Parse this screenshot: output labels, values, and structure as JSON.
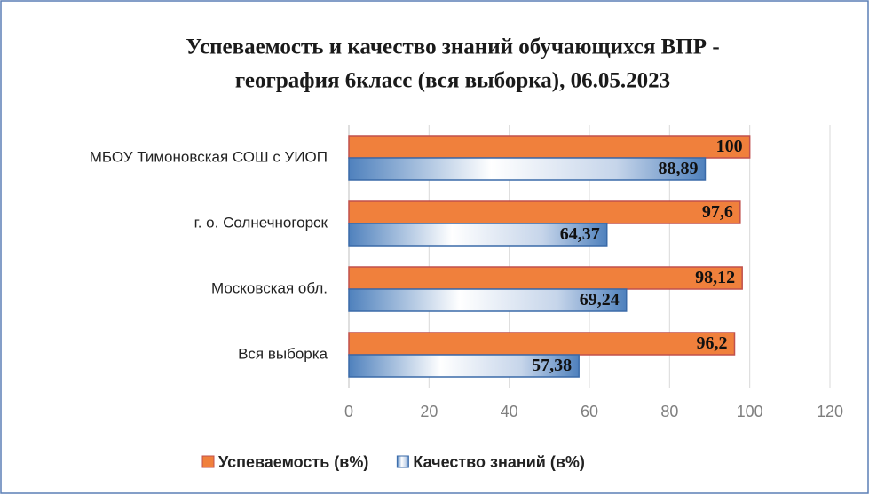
{
  "chart_data": {
    "type": "hbar",
    "title": [
      "Успеваемость и качество знаний  обучающихся ВПР -",
      "география  6класс (вся выборка), 06.05.2023"
    ],
    "categories": [
      "МБОУ Тимоновская  СОШ с УИОП",
      "г. о. Солнечногорск",
      "Московская обл.",
      "Вся выборка"
    ],
    "series": [
      {
        "name": "Успеваемость (в%)",
        "color": "#f0803c",
        "values": [
          100,
          97.6,
          98.12,
          96.2
        ],
        "value_labels": [
          "100",
          "97,6",
          "98,12",
          "96,2"
        ]
      },
      {
        "name": "Качество знаний (в%)",
        "color": "#4f81bd",
        "values": [
          88.89,
          64.37,
          69.24,
          57.38
        ],
        "value_labels": [
          "88,89",
          "64,37",
          "69,24",
          "57,38"
        ]
      }
    ],
    "xlim": [
      0,
      120
    ],
    "xticks": [
      0,
      20,
      40,
      60,
      80,
      100,
      120
    ],
    "grid": true,
    "legend": "bottom"
  }
}
